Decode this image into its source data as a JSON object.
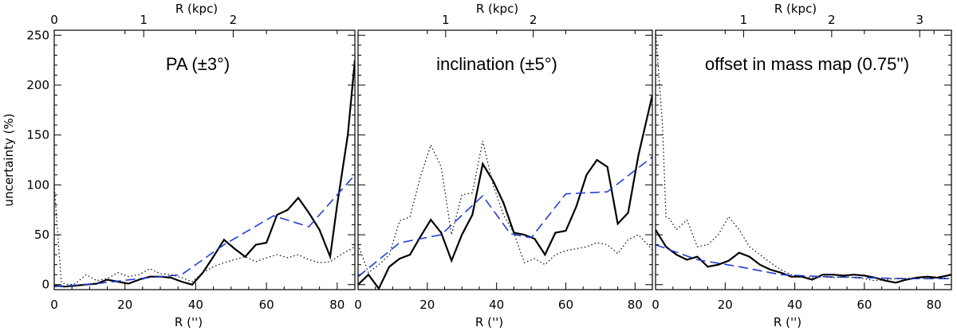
{
  "chart_data": [
    {
      "type": "line",
      "annotation": "PA (±3°)",
      "xlabel": "R ('')",
      "ylabel": "uncertainty (%)",
      "top_xlabel": "R (kpc)",
      "xlim": [
        0,
        85
      ],
      "ylim": [
        -5,
        255
      ],
      "xticks": [
        0,
        20,
        40,
        60,
        80
      ],
      "yticks": [
        0,
        50,
        100,
        150,
        200,
        250
      ],
      "top_xlim": [
        0,
        3.36
      ],
      "top_xticks": [
        0,
        1,
        2
      ],
      "series": [
        {
          "style": "solid",
          "color": "#000000",
          "x": [
            0,
            3,
            6,
            9,
            12,
            15,
            18,
            21,
            24,
            27,
            30,
            33,
            36,
            39,
            42,
            45,
            48,
            51,
            54,
            57,
            60,
            63,
            66,
            69,
            72,
            75,
            78,
            80,
            83,
            85
          ],
          "y": [
            -1,
            -2,
            -1,
            0,
            1,
            5,
            3,
            1,
            5,
            8,
            8,
            7,
            3,
            0,
            12,
            28,
            45,
            36,
            28,
            40,
            42,
            70,
            75,
            87,
            72,
            55,
            28,
            80,
            150,
            225
          ]
        },
        {
          "style": "dashed",
          "color": "#1f3fd6",
          "x": [
            0,
            12,
            24,
            36,
            48,
            62,
            72,
            85
          ],
          "y": [
            -2,
            1,
            6,
            10,
            40,
            69,
            58,
            110
          ]
        },
        {
          "style": "dotted",
          "color": "#000000",
          "x": [
            0,
            2,
            4,
            6,
            9,
            12,
            15,
            18,
            21,
            24,
            27,
            30,
            33,
            36,
            39,
            42,
            45,
            48,
            51,
            54,
            57,
            60,
            63,
            66,
            69,
            72,
            75,
            78,
            81,
            85
          ],
          "y": [
            100,
            2,
            0,
            1,
            10,
            4,
            6,
            12,
            8,
            10,
            16,
            11,
            10,
            7,
            3,
            12,
            18,
            22,
            25,
            28,
            23,
            27,
            30,
            27,
            30,
            25,
            22,
            23,
            30,
            38
          ]
        }
      ]
    },
    {
      "type": "line",
      "annotation": "inclination (±5°)",
      "xlabel": "R ('')",
      "ylabel": "",
      "top_xlabel": "R (kpc)",
      "xlim": [
        0,
        85
      ],
      "ylim": [
        -5,
        255
      ],
      "xticks": [
        0,
        20,
        40,
        60,
        80
      ],
      "yticks": [
        0,
        50,
        100,
        150,
        200,
        250
      ],
      "top_xlim": [
        0,
        3.36
      ],
      "top_xticks": [
        1,
        2
      ],
      "series": [
        {
          "style": "solid",
          "color": "#000000",
          "x": [
            0,
            3,
            6,
            9,
            12,
            15,
            18,
            21,
            24,
            27,
            30,
            33,
            36,
            39,
            42,
            45,
            48,
            51,
            54,
            57,
            60,
            63,
            66,
            69,
            72,
            75,
            78,
            81,
            85
          ],
          "y": [
            0,
            10,
            -4,
            18,
            26,
            30,
            48,
            65,
            52,
            24,
            50,
            70,
            121,
            104,
            82,
            52,
            50,
            46,
            30,
            52,
            54,
            78,
            110,
            125,
            118,
            61,
            72,
            130,
            190
          ]
        },
        {
          "style": "dashed",
          "color": "#1f3fd6",
          "x": [
            0,
            12,
            24,
            36,
            44,
            50,
            60,
            72,
            85
          ],
          "y": [
            8,
            42,
            50,
            89,
            51,
            47,
            91,
            93,
            128
          ]
        },
        {
          "style": "dotted",
          "color": "#000000",
          "x": [
            0,
            3,
            6,
            9,
            12,
            15,
            18,
            21,
            24,
            27,
            30,
            33,
            36,
            39,
            42,
            45,
            48,
            51,
            54,
            57,
            60,
            63,
            66,
            69,
            72,
            75,
            78,
            81,
            85
          ],
          "y": [
            40,
            12,
            20,
            30,
            64,
            68,
            108,
            140,
            118,
            50,
            90,
            92,
            144,
            100,
            70,
            52,
            22,
            26,
            20,
            30,
            34,
            36,
            38,
            42,
            40,
            31,
            45,
            50,
            35
          ]
        }
      ]
    },
    {
      "type": "line",
      "annotation": "offset in mass map (0.75'')",
      "xlabel": "R ('')",
      "ylabel": "",
      "top_xlabel": "R (kpc)",
      "xlim": [
        0,
        85
      ],
      "ylim": [
        -5,
        255
      ],
      "xticks": [
        0,
        20,
        40,
        60,
        80
      ],
      "yticks": [
        0,
        50,
        100,
        150,
        200,
        250
      ],
      "top_xlim": [
        0,
        3.36
      ],
      "top_xticks": [
        1,
        2,
        3
      ],
      "series": [
        {
          "style": "solid",
          "color": "#000000",
          "x": [
            0,
            3,
            6,
            9,
            12,
            15,
            18,
            21,
            24,
            27,
            30,
            33,
            36,
            39,
            42,
            45,
            48,
            51,
            54,
            57,
            60,
            63,
            66,
            69,
            72,
            75,
            78,
            81,
            85
          ],
          "y": [
            55,
            38,
            30,
            25,
            28,
            18,
            20,
            24,
            32,
            28,
            20,
            15,
            12,
            8,
            8,
            5,
            10,
            10,
            9,
            10,
            9,
            7,
            4,
            2,
            5,
            7,
            8,
            7,
            10
          ]
        },
        {
          "style": "dashed",
          "color": "#1f3fd6",
          "x": [
            0,
            12,
            24,
            36,
            48,
            60,
            72,
            85
          ],
          "y": [
            40,
            25,
            18,
            10,
            8,
            7,
            6,
            6
          ]
        },
        {
          "style": "dotted",
          "color": "#000000",
          "x": [
            0,
            2,
            3,
            4,
            6,
            9,
            12,
            15,
            18,
            21,
            24,
            27,
            30,
            33,
            36,
            39,
            42,
            45,
            48,
            51,
            54,
            57,
            60,
            63,
            66,
            69,
            72,
            75,
            78,
            81,
            85
          ],
          "y": [
            255,
            160,
            68,
            66,
            55,
            65,
            38,
            40,
            50,
            68,
            55,
            38,
            30,
            22,
            15,
            10,
            8,
            7,
            8,
            7,
            8,
            7,
            6,
            4,
            5,
            6,
            6,
            7,
            6,
            7,
            6
          ]
        }
      ]
    }
  ]
}
